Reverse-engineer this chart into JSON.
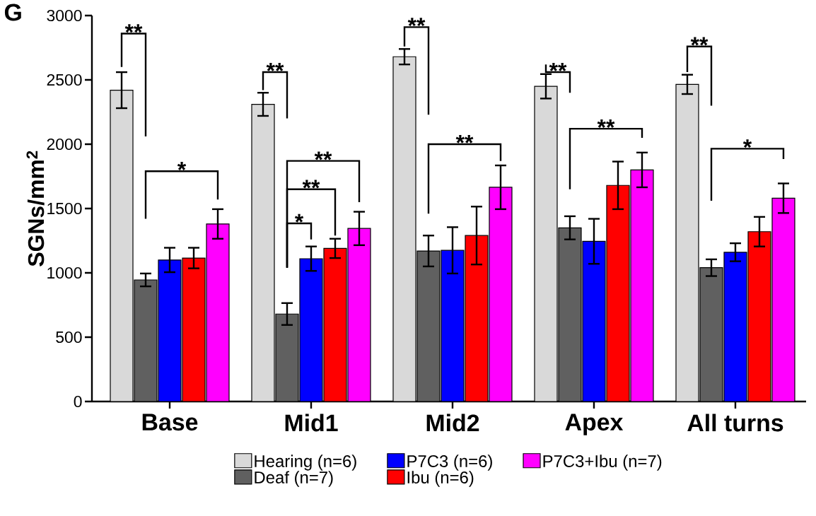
{
  "chart_data": {
    "type": "bar",
    "categories": [
      "Base",
      "Mid1",
      "Mid2",
      "Apex",
      "All turns"
    ],
    "ylabel": "SGNs/mm$^{2}$",
    "series": [
      {
        "name": "Hearing (n=6)",
        "color": "#d9d9d9",
        "values": [
          2420,
          2310,
          2680,
          2450,
          2465
        ],
        "errors": [
          140,
          90,
          60,
          95,
          75
        ]
      },
      {
        "name": "Deaf (n=7)",
        "color": "#606060",
        "values": [
          945,
          680,
          1170,
          1350,
          1040
        ],
        "errors": [
          50,
          85,
          120,
          90,
          65
        ]
      },
      {
        "name": "P7C3 (n=6)",
        "color": "#0000ff",
        "values": [
          1100,
          1110,
          1175,
          1245,
          1160
        ],
        "errors": [
          95,
          95,
          180,
          175,
          70
        ]
      },
      {
        "name": "Ibu (n=6)",
        "color": "#ff0000",
        "values": [
          1115,
          1190,
          1290,
          1680,
          1320
        ],
        "errors": [
          80,
          75,
          225,
          185,
          115
        ]
      },
      {
        "name": "P7C3+Ibu (n=7)",
        "color": "#ff00ff",
        "values": [
          1380,
          1345,
          1665,
          1800,
          1580
        ],
        "errors": [
          115,
          130,
          170,
          135,
          115
        ]
      }
    ],
    "ylim": [
      0,
      3000
    ],
    "yticks": [
      0,
      500,
      1000,
      1500,
      2000,
      2500,
      3000
    ],
    "legend": "bottom",
    "annotations": [
      "G",
      "**",
      "*",
      "**",
      "*",
      "**",
      "**",
      "**",
      "**",
      "**",
      "**",
      "**",
      "*"
    ]
  }
}
